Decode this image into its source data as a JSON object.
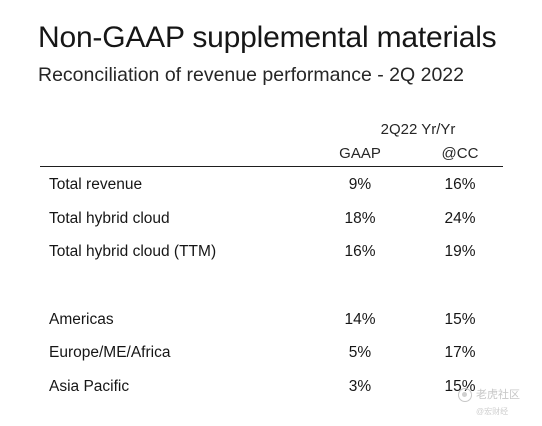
{
  "header": {
    "title": "Non-GAAP supplemental materials",
    "subtitle": "Reconciliation of revenue performance - 2Q 2022"
  },
  "table": {
    "group_header": "2Q22 Yr/Yr",
    "columns": [
      "GAAP",
      "@CC"
    ],
    "rows": [
      {
        "label": "Total revenue",
        "gaap": "9%",
        "cc": "16%"
      },
      {
        "label": "Total hybrid cloud",
        "gaap": "18%",
        "cc": "24%"
      },
      {
        "label": "Total hybrid cloud (TTM)",
        "gaap": "16%",
        "cc": "19%"
      },
      {
        "label": "Americas",
        "gaap": "14%",
        "cc": "15%"
      },
      {
        "label": "Europe/ME/Africa",
        "gaap": "5%",
        "cc": "17%"
      },
      {
        "label": "Asia Pacific",
        "gaap": "3%",
        "cc": "15%"
      }
    ]
  },
  "watermark": {
    "text": "老虎社区",
    "subtext": "@宏财经"
  }
}
